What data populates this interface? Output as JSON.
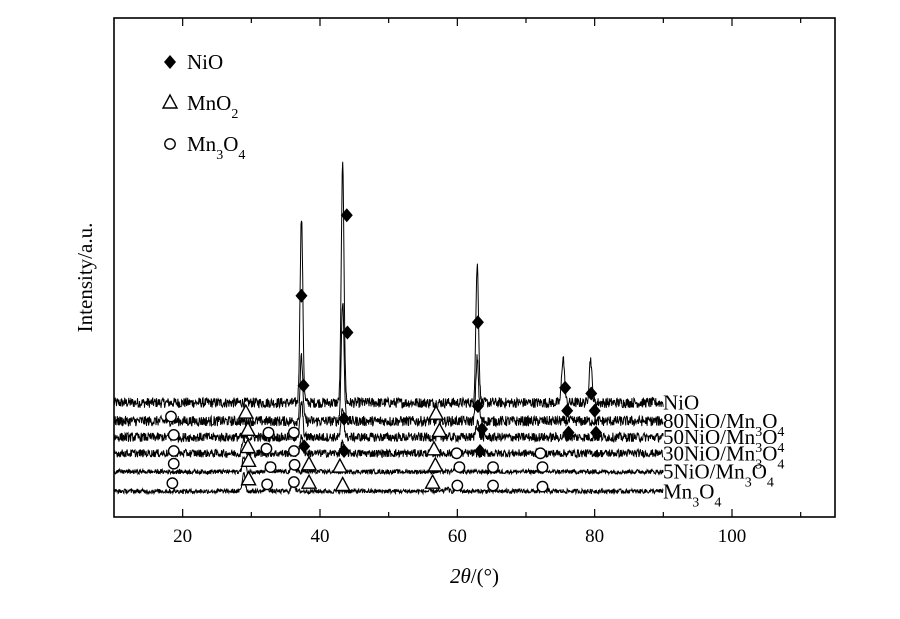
{
  "chart_data": {
    "type": "line",
    "xlabel_var": "2θ",
    "xlabel_unit": "/(°)",
    "ylabel": "Intensity/a.u.",
    "xlim": [
      10,
      115
    ],
    "data_x_range": [
      10,
      90
    ],
    "grid": false,
    "y_tick_labels": false,
    "x_ticks": [
      20,
      40,
      60,
      80,
      100
    ],
    "legend": {
      "placement": "top-left",
      "entries": [
        {
          "symbol": "diamond",
          "name": "NiO"
        },
        {
          "symbol": "triangle",
          "name": "MnO",
          "sub": "2"
        },
        {
          "symbol": "circle",
          "name": "Mn",
          "sub": "3",
          "name2": "O",
          "sub2": "4"
        }
      ]
    },
    "series": [
      {
        "name": "NiO",
        "label_parts": [
          [
            "NiO",
            false
          ]
        ],
        "baseline": 0.82,
        "noise": 0.09,
        "peaks": [
          [
            37.3,
            1.6
          ],
          [
            43.3,
            2.05
          ],
          [
            62.9,
            1.2
          ],
          [
            75.4,
            0.4
          ],
          [
            79.4,
            0.38
          ]
        ],
        "markers": [
          [
            "diamond",
            37.3,
            1.75
          ],
          [
            "diamond",
            43.9,
            2.45
          ],
          [
            "diamond",
            63.0,
            1.52
          ],
          [
            "diamond",
            75.7,
            0.95
          ],
          [
            "diamond",
            79.5,
            0.9
          ]
        ]
      },
      {
        "name": "80NiO/Mn3O4",
        "label_parts": [
          [
            "80NiO/Mn",
            false
          ],
          [
            "3",
            true
          ],
          [
            "O",
            false
          ],
          [
            "4",
            true
          ]
        ],
        "baseline": 0.66,
        "noise": 0.09,
        "peaks": [
          [
            37.3,
            0.55
          ],
          [
            43.3,
            1.05
          ],
          [
            62.9,
            0.55
          ]
        ],
        "markers": [
          [
            "circle",
            18.3,
            0.7
          ],
          [
            "triangle",
            29.2,
            0.73
          ],
          [
            "diamond",
            37.6,
            0.97
          ],
          [
            "diamond",
            44.0,
            1.43
          ],
          [
            "triangle",
            56.9,
            0.72
          ],
          [
            "diamond",
            63.0,
            0.79
          ],
          [
            "diamond",
            76.0,
            0.75
          ],
          [
            "diamond",
            80.0,
            0.75
          ]
        ]
      },
      {
        "name": "50NiO/Mn3O4",
        "label_parts": [
          [
            "50NiO/Mn",
            false
          ],
          [
            "3",
            true
          ],
          [
            "O",
            false
          ],
          [
            "4",
            true
          ]
        ],
        "baseline": 0.52,
        "noise": 0.08,
        "peaks": [
          [
            37.3,
            0.3
          ],
          [
            43.3,
            0.25
          ],
          [
            62.9,
            0.15
          ]
        ],
        "markers": [
          [
            "circle",
            18.7,
            0.54
          ],
          [
            "triangle",
            29.5,
            0.58
          ],
          [
            "circle",
            32.5,
            0.56
          ],
          [
            "circle",
            36.2,
            0.56
          ],
          [
            "diamond",
            43.5,
            0.68
          ],
          [
            "triangle",
            57.4,
            0.57
          ],
          [
            "diamond",
            63.6,
            0.59
          ],
          [
            "diamond",
            76.2,
            0.56
          ],
          [
            "diamond",
            80.2,
            0.56
          ]
        ]
      },
      {
        "name": "30NiO/Mn3O4",
        "label_parts": [
          [
            "30NiO/Mn",
            false
          ],
          [
            "3",
            true
          ],
          [
            "O",
            false
          ],
          [
            "4",
            true
          ]
        ],
        "baseline": 0.38,
        "noise": 0.07,
        "peaks": [
          [
            28.9,
            0.15
          ],
          [
            37.3,
            0.14
          ],
          [
            43.3,
            0.1
          ]
        ],
        "markers": [
          [
            "circle",
            18.7,
            0.4
          ],
          [
            "triangle",
            29.5,
            0.43
          ],
          [
            "circle",
            32.2,
            0.42
          ],
          [
            "circle",
            36.2,
            0.4
          ],
          [
            "diamond",
            37.7,
            0.44
          ],
          [
            "diamond",
            43.5,
            0.4
          ],
          [
            "triangle",
            56.6,
            0.41
          ],
          [
            "circle",
            59.9,
            0.38
          ],
          [
            "diamond",
            63.3,
            0.4
          ],
          [
            "circle",
            72.1,
            0.38
          ]
        ]
      },
      {
        "name": "5NiO/Mn3O4",
        "label_parts": [
          [
            "5NiO/Mn",
            false
          ],
          [
            "3",
            true
          ],
          [
            "O",
            false
          ],
          [
            "4",
            true
          ]
        ],
        "baseline": 0.22,
        "noise": 0.04,
        "peaks": [
          [
            28.9,
            0.13
          ],
          [
            32.4,
            0.07
          ],
          [
            36.1,
            0.08
          ],
          [
            59.9,
            0.04
          ]
        ],
        "markers": [
          [
            "circle",
            18.7,
            0.29
          ],
          [
            "triangle",
            29.6,
            0.31
          ],
          [
            "circle",
            32.8,
            0.26
          ],
          [
            "circle",
            36.3,
            0.28
          ],
          [
            "triangle",
            38.4,
            0.28
          ],
          [
            "triangle",
            42.9,
            0.26
          ],
          [
            "triangle",
            56.8,
            0.27
          ],
          [
            "circle",
            60.3,
            0.26
          ],
          [
            "circle",
            65.2,
            0.26
          ],
          [
            "circle",
            72.4,
            0.26
          ]
        ]
      },
      {
        "name": "Mn3O4",
        "label_parts": [
          [
            "Mn",
            false
          ],
          [
            "3",
            true
          ],
          [
            "O",
            false
          ],
          [
            "4",
            true
          ]
        ],
        "baseline": 0.05,
        "noise": 0.04,
        "peaks": [
          [
            28.9,
            0.17
          ],
          [
            32.3,
            0.05
          ],
          [
            36.1,
            0.11
          ],
          [
            58.5,
            0.03
          ],
          [
            60.0,
            0.04
          ]
        ],
        "markers": [
          [
            "circle",
            18.5,
            0.12
          ],
          [
            "triangle",
            29.6,
            0.15
          ],
          [
            "circle",
            32.3,
            0.11
          ],
          [
            "circle",
            36.2,
            0.13
          ],
          [
            "triangle",
            38.4,
            0.12
          ],
          [
            "triangle",
            43.3,
            0.1
          ],
          [
            "triangle",
            56.4,
            0.12
          ],
          [
            "circle",
            60.0,
            0.1
          ],
          [
            "circle",
            65.2,
            0.1
          ],
          [
            "circle",
            72.4,
            0.09
          ]
        ]
      }
    ]
  }
}
